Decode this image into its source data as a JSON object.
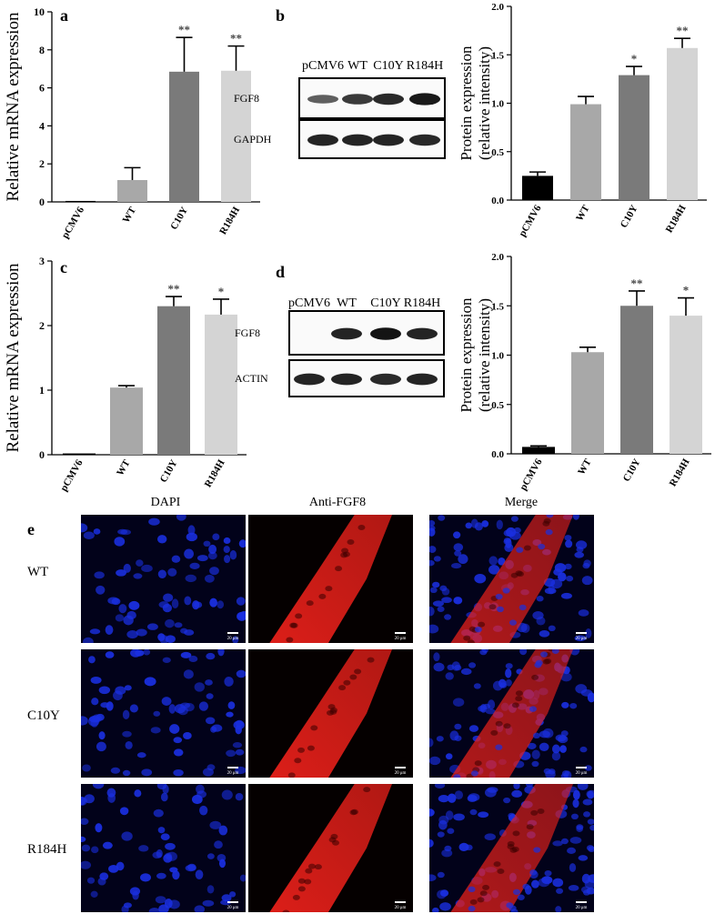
{
  "panel_letters": {
    "a": "a",
    "b": "b",
    "c": "c",
    "d": "d",
    "e": "e"
  },
  "chart_data": [
    {
      "id": "a",
      "type": "bar",
      "ylabel": "Relative mRNA expression",
      "ylim": [
        0,
        10
      ],
      "yticks": [
        "0",
        "2",
        "4",
        "6",
        "8",
        "10"
      ],
      "categories": [
        "pCMV6",
        "WT",
        "C10Y",
        "R184H"
      ],
      "values": [
        0.05,
        1.15,
        6.85,
        6.9
      ],
      "errors": [
        0,
        0.65,
        1.8,
        1.3
      ],
      "significance": [
        "",
        "",
        "**",
        "**"
      ],
      "colors": [
        "#000000",
        "#a8a8a8",
        "#7a7a7a",
        "#d4d4d4"
      ]
    },
    {
      "id": "b",
      "type": "bar",
      "ylabel_lines": [
        "Protein expression",
        "(relative intensity)"
      ],
      "ylim": [
        0,
        2.0
      ],
      "yticks": [
        "0.0",
        "0.5",
        "1.0",
        "1.5",
        "2.0"
      ],
      "categories": [
        "pCMV6",
        "WT",
        "C10Y",
        "R184H"
      ],
      "values": [
        0.25,
        0.99,
        1.29,
        1.57
      ],
      "errors": [
        0.04,
        0.08,
        0.09,
        0.1
      ],
      "significance": [
        "",
        "",
        "*",
        "**"
      ],
      "colors": [
        "#000000",
        "#a8a8a8",
        "#7a7a7a",
        "#d4d4d4"
      ]
    },
    {
      "id": "c",
      "type": "bar",
      "ylabel": "Relative mRNA expression",
      "ylim": [
        0,
        3
      ],
      "yticks": [
        "0",
        "1",
        "2",
        "3"
      ],
      "categories": [
        "pCMV6",
        "WT",
        "C10Y",
        "R184H"
      ],
      "values": [
        0.02,
        1.04,
        2.3,
        2.17
      ],
      "errors": [
        0,
        0.03,
        0.15,
        0.24
      ],
      "significance": [
        "",
        "",
        "**",
        "*"
      ],
      "colors": [
        "#000000",
        "#a8a8a8",
        "#7a7a7a",
        "#d4d4d4"
      ]
    },
    {
      "id": "d",
      "type": "bar",
      "ylabel_lines": [
        "Protein expression",
        "(relative intensity)"
      ],
      "ylim": [
        0,
        2.0
      ],
      "yticks": [
        "0.0",
        "0.5",
        "1.0",
        "1.5",
        "2.0"
      ],
      "categories": [
        "pCMV6",
        "WT",
        "C10Y",
        "R184H"
      ],
      "values": [
        0.07,
        1.03,
        1.5,
        1.4
      ],
      "errors": [
        0.01,
        0.05,
        0.15,
        0.18
      ],
      "significance": [
        "",
        "",
        "**",
        "*"
      ],
      "colors": [
        "#000000",
        "#a8a8a8",
        "#7a7a7a",
        "#d4d4d4"
      ]
    }
  ],
  "blots": {
    "b": {
      "lanes": [
        "pCMV6",
        "WT",
        "C10Y",
        "R184H"
      ],
      "rows": [
        "FGF8",
        "GAPDH"
      ],
      "intensity": [
        [
          0.45,
          0.7,
          0.8,
          0.92
        ],
        [
          0.85,
          0.85,
          0.85,
          0.82
        ]
      ]
    },
    "d": {
      "lanes": [
        "pCMV6",
        "WT",
        "C10Y",
        "R184H"
      ],
      "rows": [
        "FGF8",
        "ACTIN"
      ],
      "intensity": [
        [
          0.0,
          0.85,
          0.95,
          0.85
        ],
        [
          0.85,
          0.85,
          0.8,
          0.85
        ]
      ]
    }
  },
  "micrographs": {
    "columns": [
      "DAPI",
      "Anti-FGF8",
      "Merge"
    ],
    "rows": [
      "WT",
      "C10Y",
      "R184H"
    ],
    "scale_bar": "20 μm",
    "colors": {
      "dapi": "#1a2fe0",
      "fgf8": "#e8201a"
    }
  }
}
